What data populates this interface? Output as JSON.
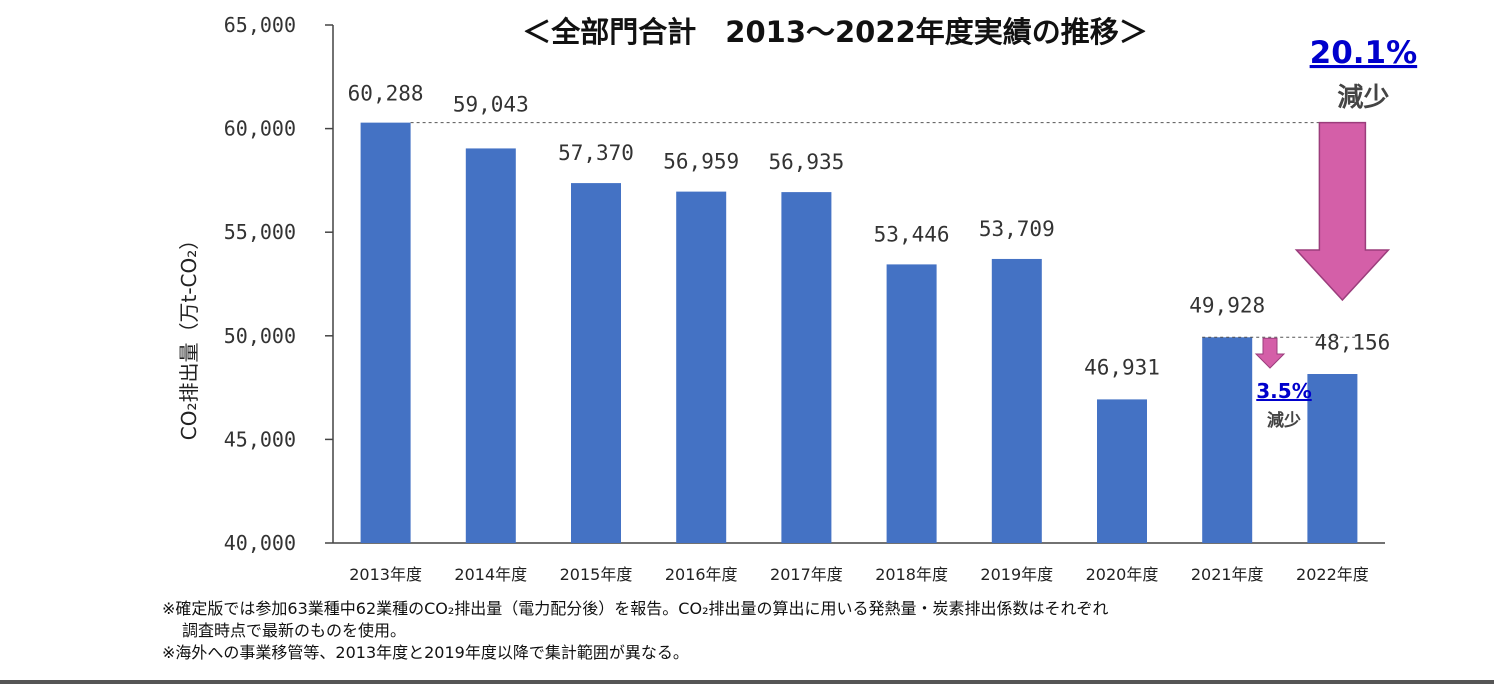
{
  "chart_data": {
    "type": "bar",
    "title": "＜全部門合計　2013～2022年度実績の推移＞",
    "ylabel": "CO₂排出量（万t-CO₂）",
    "xlabel": "",
    "ylim": [
      40000,
      65000
    ],
    "yticks": [
      40000,
      45000,
      50000,
      55000,
      60000,
      65000
    ],
    "ytick_labels": [
      "40,000",
      "45,000",
      "50,000",
      "55,000",
      "60,000",
      "65,000"
    ],
    "categories": [
      "2013年度",
      "2014年度",
      "2015年度",
      "2016年度",
      "2017年度",
      "2018年度",
      "2019年度",
      "2020年度",
      "2021年度",
      "2022年度"
    ],
    "values": [
      60288,
      59043,
      57370,
      56959,
      56935,
      53446,
      53709,
      46931,
      49928,
      48156
    ],
    "value_labels": [
      "60,288",
      "59,043",
      "57,370",
      "56,959",
      "56,935",
      "53,446",
      "53,709",
      "46,931",
      "49,928",
      "48,156"
    ],
    "bar_color": "#4472c4",
    "grid": false,
    "annotations": [
      {
        "percent": "20.1%",
        "label": "減少",
        "from": "2013年度",
        "to": "2022年度",
        "arrow_color": "#d45fa8"
      },
      {
        "percent": "3.5%",
        "label": "減少",
        "from": "2021年度",
        "to": "2022年度",
        "arrow_color": "#d45fa8"
      }
    ]
  },
  "notes": {
    "line1": "※確定版では参加63業種中62業種のCO₂排出量（電力配分後）を報告。CO₂排出量の算出に用いる発熱量・炭素排出係数はそれぞれ",
    "line2": "調査時点で最新のものを使用。",
    "line3": "※海外への事業移管等、2013年度と2019年度以降で集計範囲が異なる。"
  }
}
